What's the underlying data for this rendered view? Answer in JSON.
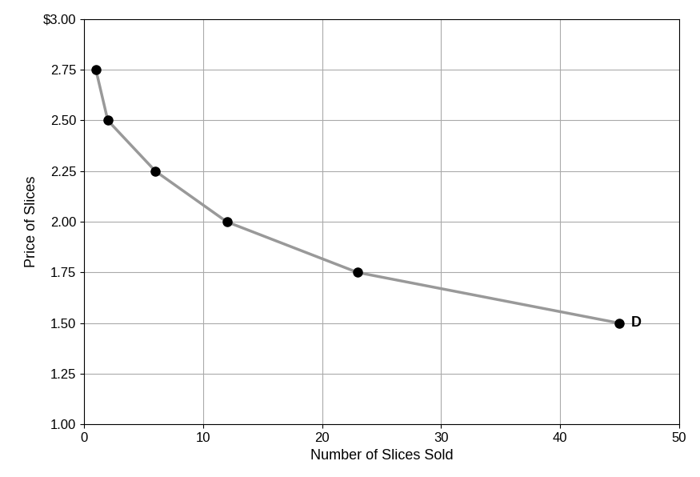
{
  "chart_data": {
    "type": "line",
    "x_label": "Number of Slices Sold",
    "y_label": "Price of Slices",
    "x": [
      1,
      2,
      6,
      12,
      23,
      45
    ],
    "series": [
      {
        "name": "D",
        "color": "#999999",
        "marker": "circle",
        "values": [
          2.75,
          2.5,
          2.25,
          2,
          1.75,
          1.5
        ]
      }
    ],
    "xlim": [
      0,
      50
    ],
    "xticks": [
      0,
      10,
      20,
      30,
      40,
      50
    ],
    "ylim": [
      1,
      3
    ],
    "yticks": [
      {
        "value": 1,
        "label": "1.00"
      },
      1.25,
      {
        "value": 1.5,
        "label": "1.50"
      },
      1.75,
      {
        "value": 2,
        "label": "2.00"
      },
      2.25,
      {
        "value": 2.5,
        "label": "2.50"
      },
      2.75,
      {
        "value": 3,
        "label": "$3.00"
      }
    ],
    "grid": true
  }
}
